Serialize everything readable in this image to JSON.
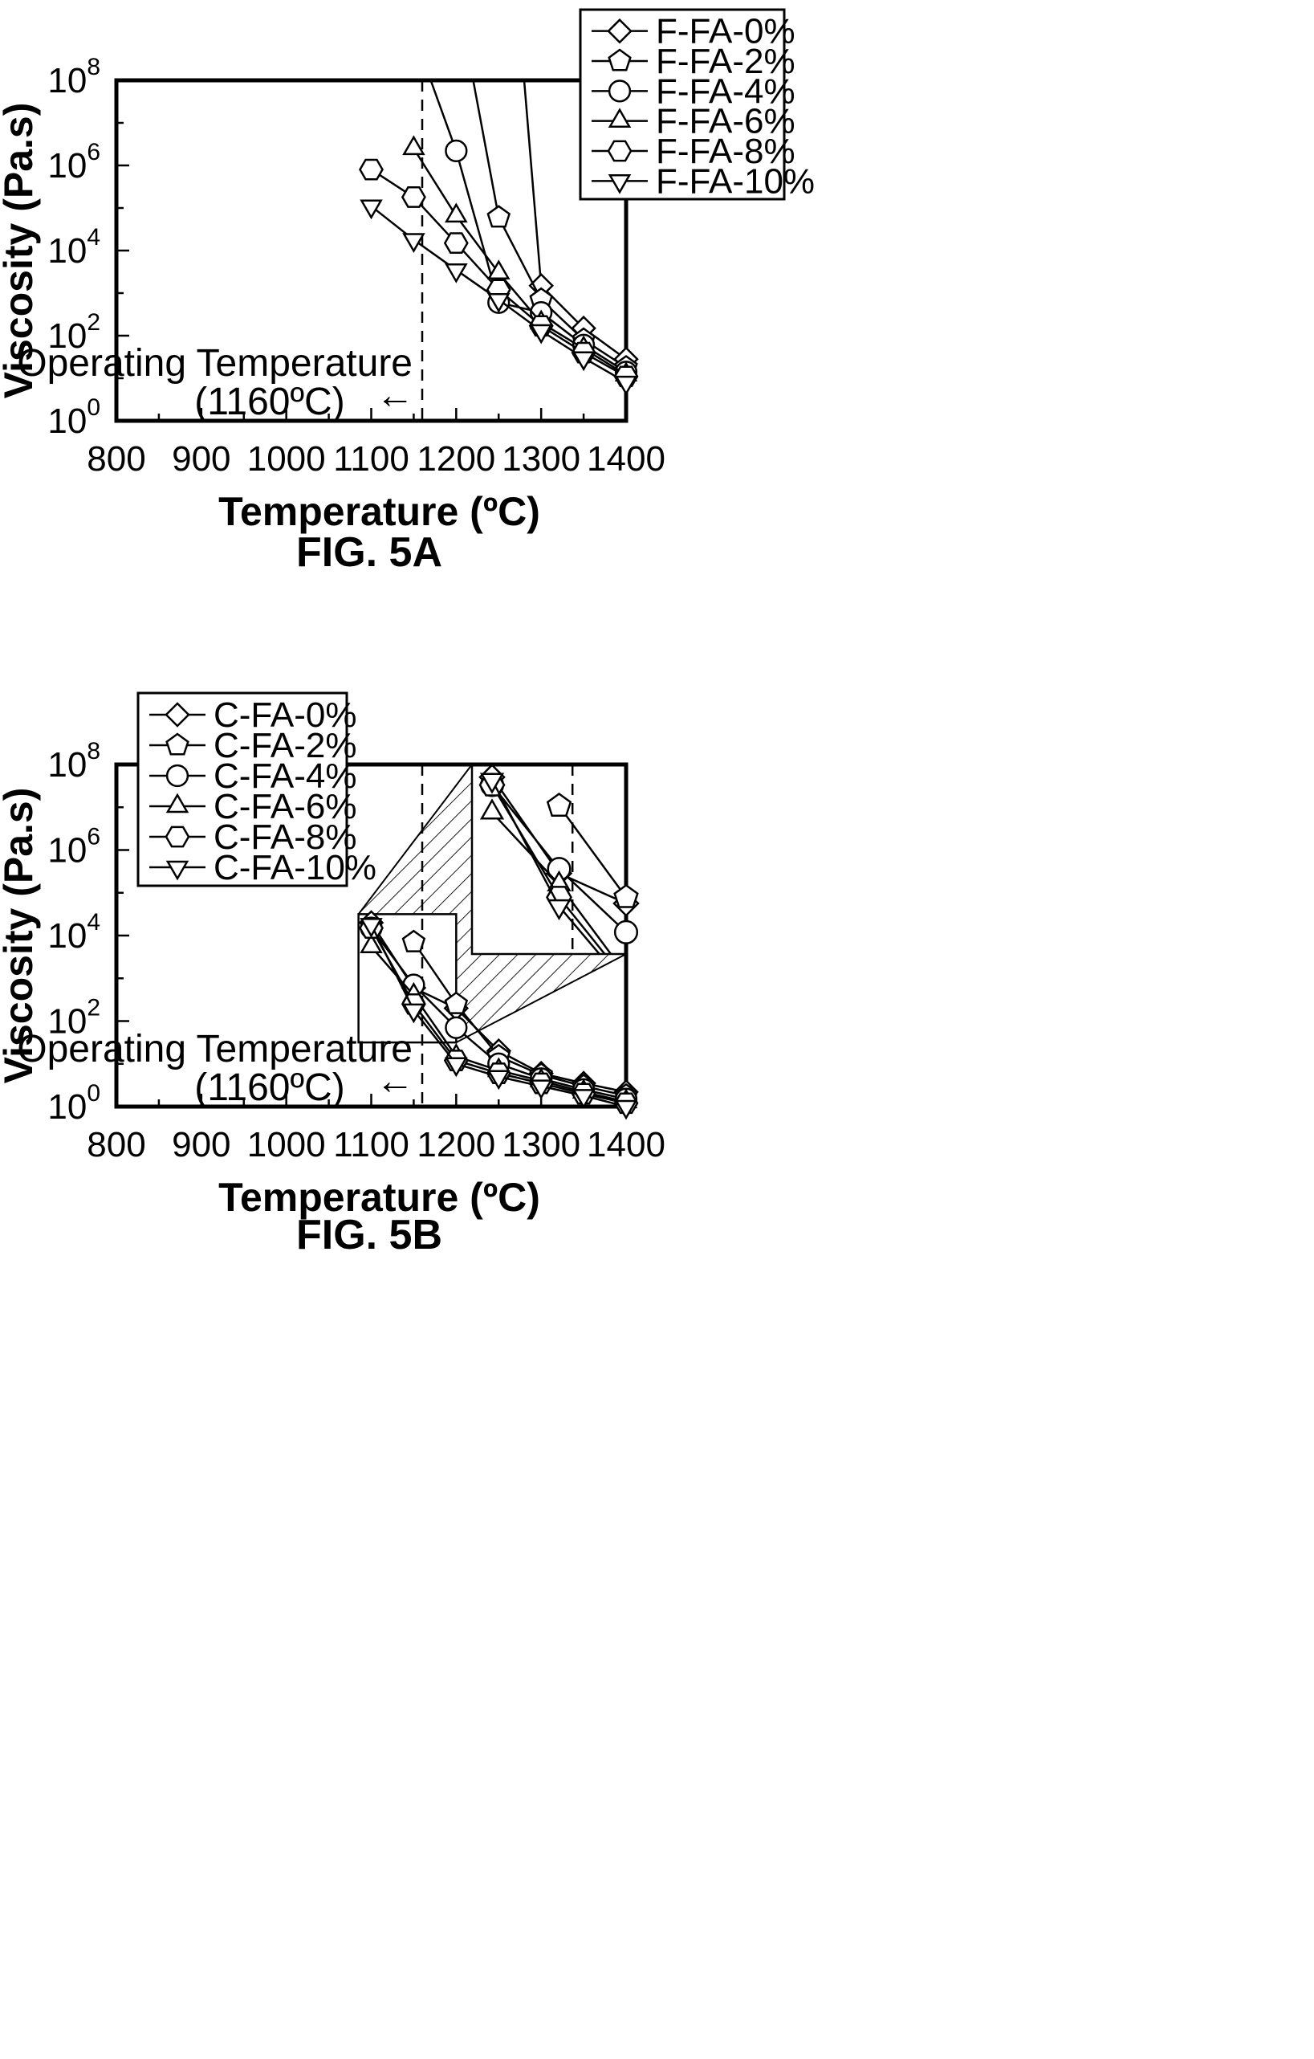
{
  "chart_data": [
    {
      "type": "line",
      "caption": "FIG. 5A",
      "xlabel": "Temperature (ºC)",
      "ylabel": "Viscosity (Pa.s)",
      "xlim": [
        800,
        1400
      ],
      "ylim_log10": [
        0,
        8
      ],
      "x_ticks": [
        "800",
        "900",
        "1000",
        "1100",
        "1200",
        "1300",
        "1400"
      ],
      "y_ticks": [
        {
          "base": "10",
          "exp": "0"
        },
        {
          "base": "10",
          "exp": "2"
        },
        {
          "base": "10",
          "exp": "4"
        },
        {
          "base": "10",
          "exp": "6"
        },
        {
          "base": "10",
          "exp": "8"
        }
      ],
      "y_scale": "log",
      "annotation": {
        "line1": "Operating Temperature",
        "line2": "(1160ºC)",
        "arrow": "←",
        "x": 1160
      },
      "legend_position": "top-right",
      "series": [
        {
          "name": "F-FA-0%",
          "marker": "diamond",
          "points": [
            [
              1280,
              100000000
            ],
            [
              1300,
              1500
            ],
            [
              1350,
              150
            ],
            [
              1400,
              28
            ]
          ]
        },
        {
          "name": "F-FA-2%",
          "marker": "pentagon",
          "points": [
            [
              1220,
              100000000
            ],
            [
              1250,
              60000
            ],
            [
              1300,
              700
            ],
            [
              1350,
              80
            ],
            [
              1400,
              18
            ]
          ]
        },
        {
          "name": "F-FA-4%",
          "marker": "circle",
          "points": [
            [
              1170,
              100000000
            ],
            [
              1200,
              2200000
            ],
            [
              1250,
              600
            ],
            [
              1300,
              350
            ],
            [
              1350,
              60
            ],
            [
              1400,
              14
            ]
          ]
        },
        {
          "name": "F-FA-6%",
          "marker": "triangle-up",
          "points": [
            [
              1150,
              2500000
            ],
            [
              1200,
              65000
            ],
            [
              1250,
              3000
            ],
            [
              1300,
              200
            ],
            [
              1350,
              50
            ],
            [
              1400,
              12
            ]
          ]
        },
        {
          "name": "F-FA-8%",
          "marker": "hexagon",
          "points": [
            [
              1100,
              800000
            ],
            [
              1150,
              180000
            ],
            [
              1200,
              15000
            ],
            [
              1250,
              1200
            ],
            [
              1300,
              170
            ],
            [
              1350,
              40
            ],
            [
              1400,
              11
            ]
          ]
        },
        {
          "name": "F-FA-10%",
          "marker": "triangle-down",
          "points": [
            [
              1100,
              110000
            ],
            [
              1150,
              18000
            ],
            [
              1200,
              3500
            ],
            [
              1250,
              700
            ],
            [
              1300,
              130
            ],
            [
              1350,
              30
            ],
            [
              1400,
              8
            ]
          ]
        }
      ]
    },
    {
      "type": "line",
      "caption": "FIG. 5B",
      "xlabel": "Temperature (ºC)",
      "ylabel": "Viscosity (Pa.s)",
      "xlim": [
        800,
        1400
      ],
      "ylim_log10": [
        0,
        8
      ],
      "x_ticks": [
        "800",
        "900",
        "1000",
        "1100",
        "1200",
        "1300",
        "1400"
      ],
      "y_ticks": [
        {
          "base": "10",
          "exp": "0"
        },
        {
          "base": "10",
          "exp": "2"
        },
        {
          "base": "10",
          "exp": "4"
        },
        {
          "base": "10",
          "exp": "6"
        },
        {
          "base": "10",
          "exp": "8"
        }
      ],
      "y_scale": "log",
      "annotation": {
        "line1": "Operating Temperature",
        "line2": "(1160ºC)",
        "arrow": "←",
        "x": 1160
      },
      "legend_position": "top-left",
      "inset": {
        "zoom_x": [
          1085,
          1200
        ],
        "zoom_y_log10": [
          1.5,
          4.5
        ]
      },
      "series": [
        {
          "name": "C-FA-0%",
          "marker": "diamond",
          "points": [
            [
              1100,
              20000
            ],
            [
              1150,
              600
            ],
            [
              1200,
              200
            ],
            [
              1250,
              20
            ],
            [
              1300,
              6
            ],
            [
              1350,
              3.5
            ],
            [
              1400,
              2.2
            ]
          ]
        },
        {
          "name": "C-FA-2%",
          "marker": "pentagon",
          "points": [
            [
              1150,
              7000
            ],
            [
              1200,
              250
            ],
            [
              1250,
              15
            ],
            [
              1300,
              5.5
            ],
            [
              1350,
              3
            ],
            [
              1400,
              1.8
            ]
          ]
        },
        {
          "name": "C-FA-4%",
          "marker": "circle",
          "points": [
            [
              1100,
              15000
            ],
            [
              1150,
              700
            ],
            [
              1200,
              70
            ],
            [
              1250,
              10
            ],
            [
              1300,
              4.5
            ],
            [
              1350,
              2.5
            ],
            [
              1400,
              1.5
            ]
          ]
        },
        {
          "name": "C-FA-6%",
          "marker": "triangle-up",
          "points": [
            [
              1100,
              5500
            ],
            [
              1150,
              400
            ],
            [
              1200,
              15
            ],
            [
              1250,
              7
            ],
            [
              1300,
              4
            ],
            [
              1350,
              2.2
            ],
            [
              1400,
              1.3
            ]
          ]
        },
        {
          "name": "C-FA-8%",
          "marker": "hexagon",
          "points": [
            [
              1100,
              15000
            ],
            [
              1150,
              250
            ],
            [
              1200,
              12
            ],
            [
              1250,
              6
            ],
            [
              1300,
              3.5
            ],
            [
              1350,
              2
            ],
            [
              1400,
              1.2
            ]
          ]
        },
        {
          "name": "C-FA-10%",
          "marker": "triangle-down",
          "points": [
            [
              1100,
              18000
            ],
            [
              1150,
              180
            ],
            [
              1200,
              10
            ],
            [
              1250,
              5
            ],
            [
              1300,
              3
            ],
            [
              1350,
              1.8
            ],
            [
              1400,
              1.0
            ]
          ]
        }
      ]
    }
  ]
}
